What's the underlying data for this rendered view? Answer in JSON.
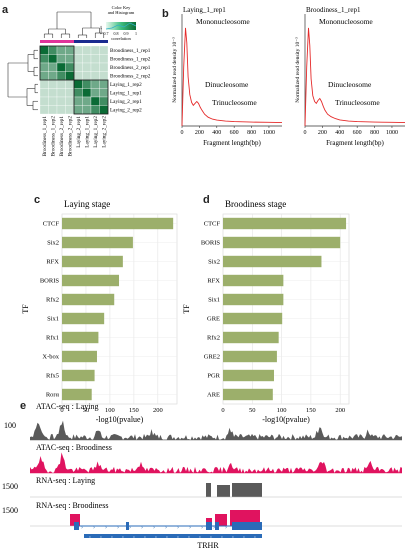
{
  "panel_labels": {
    "a": "a",
    "b": "b",
    "c": "c",
    "d": "d",
    "e": "e"
  },
  "heatmap": {
    "key_title_line1": "Color Key",
    "key_title_line2": "and Histogram",
    "key_xlabel": "correlation",
    "key_ticks": [
      "0.7",
      "0.8",
      "0.9",
      "1"
    ],
    "row_labels": [
      "Broodiness_1_rep1",
      "Broodiness_1_rep2",
      "Broodiness_2_rep1",
      "Broodiness_2_rep2",
      "Laying_1_rep2",
      "Laying_1_rep1",
      "Laying_2_rep1",
      "Laying_2_rep2"
    ],
    "col_labels": [
      "Broodiness_1_rep1",
      "Broodiness_1_rep2",
      "Broodiness_2_rep1",
      "Broodiness_2_rep2",
      "Laying_2_rep1",
      "Laying_1_rep1",
      "Laying_1_rep2",
      "Laying_2_rep2"
    ],
    "color_low": "#f2fbf6",
    "color_high": "#0a6b35"
  },
  "chart_data": [
    {
      "type": "line",
      "title": "Laying_1_rep1",
      "xlabel": "Fragment length(bp)",
      "ylabel": "Normalized read density 10⁻³",
      "x_ticks": [
        "0",
        "200",
        "400",
        "600",
        "800",
        "1000"
      ],
      "xlim": [
        0,
        1150
      ],
      "annotations": [
        "Mononucleosome",
        "Dinucleosome",
        "Trinucleosome"
      ],
      "series": [
        {
          "x": [
            0,
            20,
            40,
            55,
            70,
            90,
            110,
            130,
            150,
            170,
            190,
            210,
            230,
            260,
            300,
            350,
            400,
            500,
            600,
            800,
            1000,
            1150
          ],
          "y": [
            0,
            6,
            10,
            8.5,
            5,
            3.2,
            2.4,
            2.1,
            2.3,
            2.5,
            2.3,
            1.9,
            1.6,
            1.2,
            0.9,
            0.7,
            0.6,
            0.5,
            0.45,
            0.4,
            0.38,
            0.35
          ]
        }
      ]
    },
    {
      "type": "line",
      "title": "Broodiness_1_rep1",
      "xlabel": "Fragment length(bp)",
      "ylabel": "Normalized read density 10⁻³",
      "x_ticks": [
        "0",
        "200",
        "400",
        "600",
        "800",
        "1000"
      ],
      "xlim": [
        0,
        1150
      ],
      "annotations": [
        "Mononucleosome",
        "Dinucleosome",
        "Trinucleosome"
      ],
      "series": [
        {
          "x": [
            0,
            20,
            40,
            55,
            70,
            90,
            110,
            130,
            150,
            170,
            190,
            210,
            230,
            260,
            300,
            350,
            400,
            500,
            600,
            800,
            1000,
            1150
          ],
          "y": [
            0,
            6,
            10,
            8.2,
            4.8,
            3.1,
            2.5,
            2.3,
            2.6,
            2.8,
            2.5,
            2.0,
            1.6,
            1.2,
            0.95,
            0.75,
            0.62,
            0.5,
            0.45,
            0.4,
            0.38,
            0.35
          ]
        }
      ]
    },
    {
      "type": "bar",
      "title": "Laying stage",
      "xlabel": "-log10(pvalue)",
      "ylabel": "TF",
      "categories": [
        "CTCF",
        "Six2",
        "RFX",
        "BORIS",
        "Rfx2",
        "Six1",
        "Rfx1",
        "X-box",
        "Rfx5",
        "Rorα"
      ],
      "values": [
        232,
        148,
        127,
        119,
        109,
        88,
        76,
        73,
        68,
        62
      ],
      "x_ticks": [
        "0",
        "50",
        "100",
        "150",
        "200"
      ],
      "xlim": [
        0,
        240
      ],
      "bar_color": "#9caf6b"
    },
    {
      "type": "bar",
      "title": "Broodiness stage",
      "xlabel": "-log10(pvalue)",
      "ylabel": "TF",
      "categories": [
        "CTCF",
        "BORIS",
        "Six2",
        "RFX",
        "Six1",
        "GRE",
        "Rfx2",
        "GRE2",
        "PGR",
        "ARE"
      ],
      "values": [
        210,
        200,
        168,
        103,
        103,
        101,
        95,
        92,
        87,
        85
      ],
      "x_ticks": [
        "0",
        "50",
        "100",
        "150",
        "200"
      ],
      "xlim": [
        0,
        215
      ],
      "bar_color": "#9caf6b"
    }
  ],
  "tracks": {
    "track1_label": "ATAC-seq : Laying",
    "track1_scale": "100",
    "track2_label": "ATAC-seq : Broodiness",
    "track3_label": "RNA-seq : Laying",
    "track3_scale": "1500",
    "track4_label": "RNA-seq : Broodiness",
    "track4_scale": "1500",
    "gene_label": "TRHR",
    "atac_laying_color": "#5a5a5a",
    "atac_brood_color": "#e0135f",
    "rna_laying_color": "#5a5a5a",
    "rna_brood_color": "#e0135f",
    "gene_color": "#2a6bb8"
  }
}
